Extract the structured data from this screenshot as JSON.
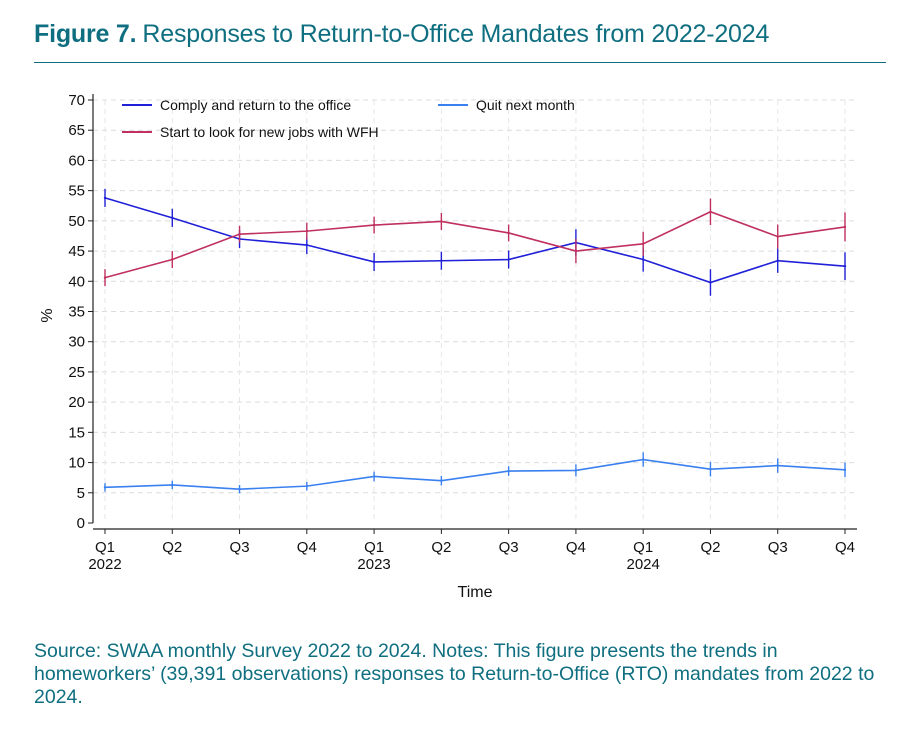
{
  "figure": {
    "label": "Figure 7.",
    "title": "Responses to Return-to-Office Mandates from 2022-2024",
    "source_note": "Source: SWAA monthly Survey 2022 to 2024. Notes: This figure presents the trends in homeworkers’ (39,391 observations) responses to Return-to-Office (RTO) mandates from 2022 to 2024.",
    "accent_color": "#0f6f80"
  },
  "chart_data": {
    "type": "line",
    "xlabel": "Time",
    "ylabel": "%",
    "ylim": [
      0,
      70
    ],
    "yticks": [
      0,
      5,
      10,
      15,
      20,
      25,
      30,
      35,
      40,
      45,
      50,
      55,
      60,
      65,
      70
    ],
    "categories": [
      "Q1 2022",
      "Q2 2022",
      "Q3 2022",
      "Q4 2022",
      "Q1 2023",
      "Q2 2023",
      "Q3 2023",
      "Q4 2023",
      "Q1 2024",
      "Q2 2024",
      "Q3 2024",
      "Q4 2024"
    ],
    "tick_labels": [
      {
        "quarter": "Q1",
        "year": "2022"
      },
      {
        "quarter": "Q2",
        "year": ""
      },
      {
        "quarter": "Q3",
        "year": ""
      },
      {
        "quarter": "Q4",
        "year": ""
      },
      {
        "quarter": "Q1",
        "year": "2023"
      },
      {
        "quarter": "Q2",
        "year": ""
      },
      {
        "quarter": "Q3",
        "year": ""
      },
      {
        "quarter": "Q4",
        "year": ""
      },
      {
        "quarter": "Q1",
        "year": "2024"
      },
      {
        "quarter": "Q2",
        "year": ""
      },
      {
        "quarter": "Q3",
        "year": ""
      },
      {
        "quarter": "Q4",
        "year": ""
      }
    ],
    "grid": true,
    "legend_position": "top",
    "error_bars": true,
    "series": [
      {
        "name": "Comply and return to the office",
        "color": "#2020d8",
        "values": [
          53.8,
          50.5,
          47.0,
          46.0,
          43.2,
          43.4,
          43.6,
          46.4,
          43.6,
          39.8,
          43.4,
          42.5
        ],
        "error": [
          1.5,
          1.5,
          1.5,
          1.5,
          1.5,
          1.5,
          1.5,
          2.2,
          2.0,
          2.2,
          2.0,
          2.3
        ]
      },
      {
        "name": "Start to look for new jobs with WFH",
        "color": "#c0305e",
        "values": [
          40.6,
          43.6,
          47.8,
          48.3,
          49.3,
          49.9,
          48.0,
          45.0,
          46.2,
          51.5,
          47.4,
          49.0
        ],
        "error": [
          1.4,
          1.4,
          1.4,
          1.4,
          1.4,
          1.4,
          1.4,
          2.0,
          2.0,
          2.2,
          2.0,
          2.4
        ]
      },
      {
        "name": "Quit next month",
        "color": "#3a80f0",
        "values": [
          5.9,
          6.3,
          5.6,
          6.1,
          7.7,
          7.0,
          8.6,
          8.7,
          10.5,
          8.9,
          9.5,
          8.8
        ],
        "error": [
          0.7,
          0.7,
          0.7,
          0.7,
          0.8,
          0.8,
          0.8,
          1.0,
          1.2,
          1.2,
          1.2,
          1.2
        ]
      }
    ]
  }
}
